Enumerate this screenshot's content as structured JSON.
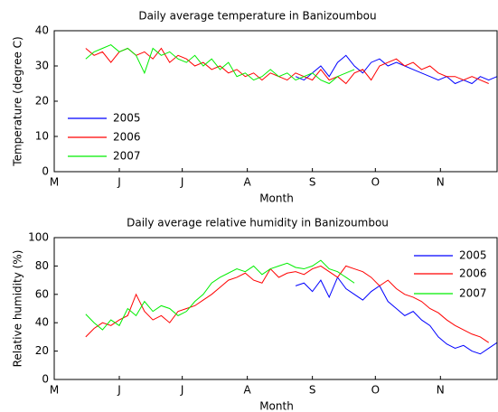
{
  "chart_data": [
    {
      "type": "line",
      "title": "Daily average temperature in Banizoumbou",
      "xlabel": "Month",
      "ylabel": "Temperature (degree C)",
      "xlim": [
        121,
        332
      ],
      "xticks": [
        {
          "value": 121,
          "label": "M"
        },
        {
          "value": 152,
          "label": "J"
        },
        {
          "value": 182,
          "label": "J"
        },
        {
          "value": 213,
          "label": "A"
        },
        {
          "value": 244,
          "label": "S"
        },
        {
          "value": 274,
          "label": "O"
        },
        {
          "value": 305,
          "label": "N"
        }
      ],
      "ylim": [
        0,
        40
      ],
      "yticks": [
        0,
        10,
        20,
        30,
        40
      ],
      "legend": "lower-left",
      "series": [
        {
          "name": "2005",
          "color": "#0000ff",
          "x": [
            236,
            240,
            244,
            248,
            252,
            256,
            260,
            264,
            268,
            272,
            276,
            280,
            284,
            288,
            292,
            296,
            300,
            304,
            308,
            312,
            316,
            320,
            324,
            328,
            332
          ],
          "values": [
            27,
            26,
            28,
            30,
            27,
            31,
            33,
            30,
            28,
            31,
            32,
            30,
            31,
            30,
            29,
            28,
            27,
            26,
            27,
            25,
            26,
            25,
            27,
            26,
            27
          ]
        },
        {
          "name": "2006",
          "color": "#ff0000",
          "x": [
            136,
            140,
            144,
            148,
            152,
            156,
            160,
            164,
            168,
            172,
            176,
            180,
            184,
            188,
            192,
            196,
            200,
            204,
            208,
            212,
            216,
            220,
            224,
            228,
            232,
            236,
            240,
            244,
            248,
            252,
            256,
            260,
            264,
            268,
            272,
            276,
            280,
            284,
            288,
            292,
            296,
            300,
            304,
            308,
            312,
            316,
            320,
            324,
            328
          ],
          "values": [
            35,
            33,
            34,
            31,
            34,
            35,
            33,
            34,
            32,
            35,
            31,
            33,
            32,
            30,
            31,
            29,
            30,
            28,
            29,
            27,
            28,
            26,
            28,
            27,
            26,
            28,
            27,
            26,
            29,
            26,
            27,
            25,
            28,
            29,
            26,
            30,
            31,
            32,
            30,
            31,
            29,
            30,
            28,
            27,
            27,
            26,
            27,
            26,
            25
          ]
        },
        {
          "name": "2007",
          "color": "#00ee00",
          "x": [
            136,
            140,
            144,
            148,
            152,
            156,
            160,
            164,
            168,
            172,
            176,
            180,
            184,
            188,
            192,
            196,
            200,
            204,
            208,
            212,
            216,
            220,
            224,
            228,
            232,
            236,
            240,
            244,
            248,
            252,
            256,
            260,
            264
          ],
          "values": [
            32,
            34,
            35,
            36,
            34,
            35,
            33,
            28,
            35,
            33,
            34,
            32,
            31,
            33,
            30,
            32,
            29,
            31,
            27,
            28,
            26,
            27,
            29,
            27,
            28,
            26,
            27,
            28,
            26,
            25,
            27,
            28,
            29
          ]
        }
      ]
    },
    {
      "type": "line",
      "title": "Daily average relative humidity in Banizoumbou",
      "xlabel": "Month",
      "ylabel": "Relative humidity (%)",
      "xlim": [
        121,
        332
      ],
      "xticks": [
        {
          "value": 121,
          "label": "M"
        },
        {
          "value": 152,
          "label": "J"
        },
        {
          "value": 182,
          "label": "J"
        },
        {
          "value": 213,
          "label": "A"
        },
        {
          "value": 244,
          "label": "S"
        },
        {
          "value": 274,
          "label": "O"
        },
        {
          "value": 305,
          "label": "N"
        }
      ],
      "ylim": [
        0,
        100
      ],
      "yticks": [
        0,
        20,
        40,
        60,
        80,
        100
      ],
      "legend": "upper-right",
      "series": [
        {
          "name": "2005",
          "color": "#0000ff",
          "x": [
            236,
            240,
            244,
            248,
            252,
            256,
            260,
            264,
            268,
            272,
            276,
            280,
            284,
            288,
            292,
            296,
            300,
            304,
            308,
            312,
            316,
            320,
            324,
            328,
            332
          ],
          "values": [
            66,
            68,
            62,
            70,
            58,
            72,
            64,
            60,
            56,
            62,
            66,
            55,
            50,
            45,
            48,
            42,
            38,
            30,
            25,
            22,
            24,
            20,
            18,
            22,
            26
          ]
        },
        {
          "name": "2006",
          "color": "#ff0000",
          "x": [
            136,
            140,
            144,
            148,
            152,
            156,
            160,
            164,
            168,
            172,
            176,
            180,
            184,
            188,
            192,
            196,
            200,
            204,
            208,
            212,
            216,
            220,
            224,
            228,
            232,
            236,
            240,
            244,
            248,
            252,
            256,
            260,
            264,
            268,
            272,
            276,
            280,
            284,
            288,
            292,
            296,
            300,
            304,
            308,
            312,
            316,
            320,
            324,
            328
          ],
          "values": [
            30,
            36,
            40,
            38,
            42,
            45,
            60,
            48,
            42,
            45,
            40,
            48,
            50,
            52,
            56,
            60,
            65,
            70,
            72,
            75,
            70,
            68,
            78,
            72,
            75,
            76,
            74,
            78,
            80,
            76,
            72,
            80,
            78,
            76,
            72,
            66,
            70,
            64,
            60,
            58,
            55,
            50,
            47,
            42,
            38,
            35,
            32,
            30,
            26
          ]
        },
        {
          "name": "2007",
          "color": "#00ee00",
          "x": [
            136,
            140,
            144,
            148,
            152,
            156,
            160,
            164,
            168,
            172,
            176,
            180,
            184,
            188,
            192,
            196,
            200,
            204,
            208,
            212,
            216,
            220,
            224,
            228,
            232,
            236,
            240,
            244,
            248,
            252,
            256,
            260,
            264
          ],
          "values": [
            46,
            40,
            35,
            42,
            38,
            50,
            45,
            55,
            48,
            52,
            50,
            45,
            48,
            55,
            60,
            68,
            72,
            75,
            78,
            76,
            80,
            74,
            78,
            80,
            82,
            79,
            78,
            80,
            84,
            78,
            76,
            72,
            68
          ]
        }
      ]
    }
  ]
}
